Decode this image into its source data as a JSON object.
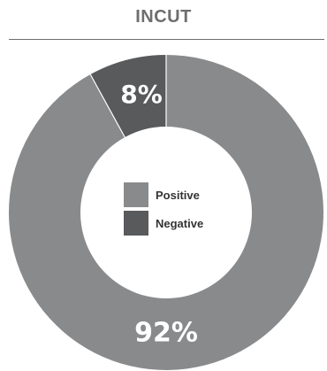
{
  "chart_data": {
    "type": "pie",
    "title": "INCUT",
    "donut": true,
    "legend_position": "center",
    "categories": [
      "Positive",
      "Negative"
    ],
    "values": [
      92,
      8
    ],
    "value_labels": [
      "92%",
      "8%"
    ],
    "colors": [
      "#898a8c",
      "#595a5c"
    ]
  }
}
